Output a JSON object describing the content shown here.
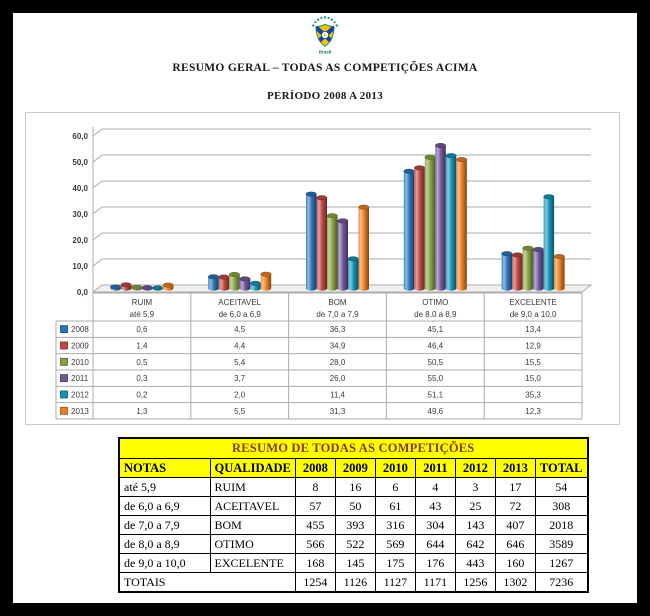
{
  "header": {
    "logo_label": "Brasil",
    "title": "RESUMO GERAL – TODAS AS COMPETIÇÕES ACIMA",
    "subtitle": "PERÍODO 2008 A 2013"
  },
  "chart_data": {
    "type": "bar",
    "style": "3d-cylinder",
    "title": "",
    "xlabel": "",
    "ylabel": "",
    "ylim": [
      0,
      60
    ],
    "ytick_step": 10,
    "ytick_labels": [
      "0,0",
      "10,0",
      "20,0",
      "30,0",
      "40,0",
      "50,0",
      "60,0"
    ],
    "grid": true,
    "legend_position": "left-table",
    "categories": [
      {
        "name": "RUIM",
        "range": "até 5,9"
      },
      {
        "name": "ACEITAVEL",
        "range": "de 6,0 a 6,9"
      },
      {
        "name": "BOM",
        "range": "de 7,0 a 7,9"
      },
      {
        "name": "OTIMO",
        "range": "de 8,0 a 8,9"
      },
      {
        "name": "EXCELENTE",
        "range": "de 9,0 a 10,0"
      }
    ],
    "series": [
      {
        "name": "2008",
        "color": "#2B74B8",
        "values": [
          0.6,
          4.5,
          36.3,
          45.1,
          13.4
        ]
      },
      {
        "name": "2009",
        "color": "#BE4742",
        "values": [
          1.4,
          4.4,
          34.9,
          46.4,
          12.9
        ]
      },
      {
        "name": "2010",
        "color": "#86A243",
        "values": [
          0.5,
          5.4,
          28.0,
          50.5,
          15.5
        ]
      },
      {
        "name": "2011",
        "color": "#70569B",
        "values": [
          0.3,
          3.7,
          26.0,
          55.0,
          15.0
        ]
      },
      {
        "name": "2012",
        "color": "#1592B4",
        "values": [
          0.2,
          2.0,
          11.4,
          51.1,
          35.3
        ]
      },
      {
        "name": "2013",
        "color": "#E87E23",
        "values": [
          1.3,
          5.5,
          31.3,
          49.6,
          12.3
        ]
      }
    ]
  },
  "summary_table": {
    "title": "RESUMO DE TODAS AS COMPETIÇÕES",
    "columns": [
      "NOTAS",
      "QUALIDADE",
      "2008",
      "2009",
      "2010",
      "2011",
      "2012",
      "2013",
      "TOTAL"
    ],
    "rows": [
      [
        "até 5,9",
        "RUIM",
        "8",
        "16",
        "6",
        "4",
        "3",
        "17",
        "54"
      ],
      [
        "de 6,0 a 6,9",
        "ACEITAVEL",
        "57",
        "50",
        "61",
        "43",
        "25",
        "72",
        "308"
      ],
      [
        "de 7,0 a 7,9",
        "BOM",
        "455",
        "393",
        "316",
        "304",
        "143",
        "407",
        "2018"
      ],
      [
        "de 8,0 a 8,9",
        "OTIMO",
        "566",
        "522",
        "569",
        "644",
        "642",
        "646",
        "3589"
      ],
      [
        "de 9,0 a 10,0",
        "EXCELENTE",
        "168",
        "145",
        "175",
        "176",
        "443",
        "160",
        "1267"
      ]
    ],
    "totals_row": {
      "label": "TOTAIS",
      "values": [
        "1254",
        "1126",
        "1127",
        "1171",
        "1256",
        "1302",
        "7236"
      ]
    },
    "colors": {
      "header_bg": "#FFFF00",
      "title_color": "#8B3800",
      "border": "#000000"
    }
  }
}
